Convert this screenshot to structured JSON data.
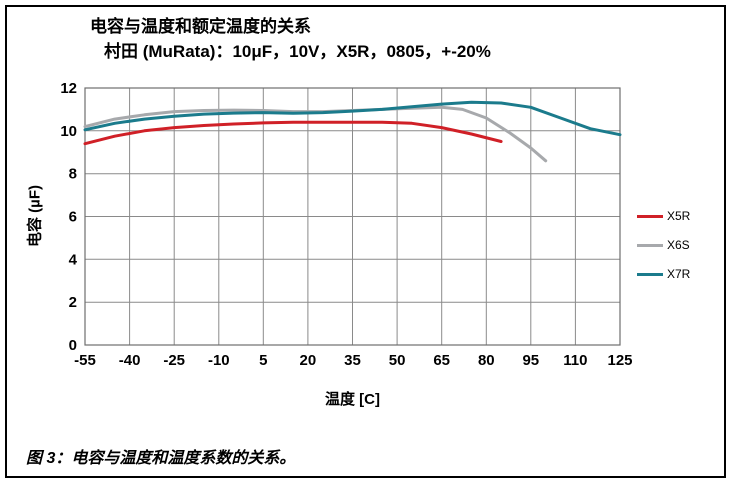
{
  "figure": {
    "caption": "图 3：电容与温度和温度系数的关系。"
  },
  "chart_data": {
    "type": "line",
    "title": "电容与温度和额定温度的关系",
    "subtitle": "村田 (MuRata)：10μF，10V，X5R，0805，+-20%",
    "xlabel": "温度 [C]",
    "ylabel": "电容 (µF)",
    "xlim": [
      -55,
      125
    ],
    "ylim": [
      0,
      12
    ],
    "xticks": [
      -55,
      -40,
      -25,
      -10,
      5,
      20,
      35,
      50,
      65,
      80,
      95,
      110,
      125
    ],
    "yticks": [
      0,
      2,
      4,
      6,
      8,
      10,
      12
    ],
    "grid": true,
    "legend_position": "right",
    "grid_color": "#8a8a8a",
    "series": [
      {
        "name": "X5R",
        "color": "#d02027",
        "x": [
          -55,
          -45,
          -35,
          -25,
          -15,
          -5,
          5,
          15,
          25,
          35,
          45,
          55,
          65,
          75,
          85
        ],
        "y": [
          9.4,
          9.75,
          10.0,
          10.15,
          10.25,
          10.32,
          10.37,
          10.4,
          10.4,
          10.4,
          10.4,
          10.35,
          10.15,
          9.85,
          9.5
        ]
      },
      {
        "name": "X6S",
        "color": "#a7a9ac",
        "x": [
          -55,
          -45,
          -35,
          -25,
          -15,
          -5,
          5,
          15,
          25,
          35,
          45,
          55,
          65,
          72,
          80,
          88,
          95,
          100
        ],
        "y": [
          10.2,
          10.55,
          10.75,
          10.9,
          10.95,
          10.97,
          10.95,
          10.9,
          10.9,
          10.95,
          11.0,
          11.05,
          11.1,
          11.0,
          10.6,
          9.9,
          9.2,
          8.6
        ]
      },
      {
        "name": "X7R",
        "color": "#1b7b8c",
        "x": [
          -55,
          -45,
          -35,
          -25,
          -15,
          -5,
          5,
          15,
          25,
          35,
          45,
          55,
          65,
          75,
          85,
          95,
          105,
          115,
          125
        ],
        "y": [
          10.05,
          10.35,
          10.55,
          10.68,
          10.78,
          10.83,
          10.85,
          10.82,
          10.85,
          10.92,
          11.0,
          11.12,
          11.25,
          11.33,
          11.3,
          11.1,
          10.6,
          10.1,
          9.82
        ]
      }
    ]
  }
}
